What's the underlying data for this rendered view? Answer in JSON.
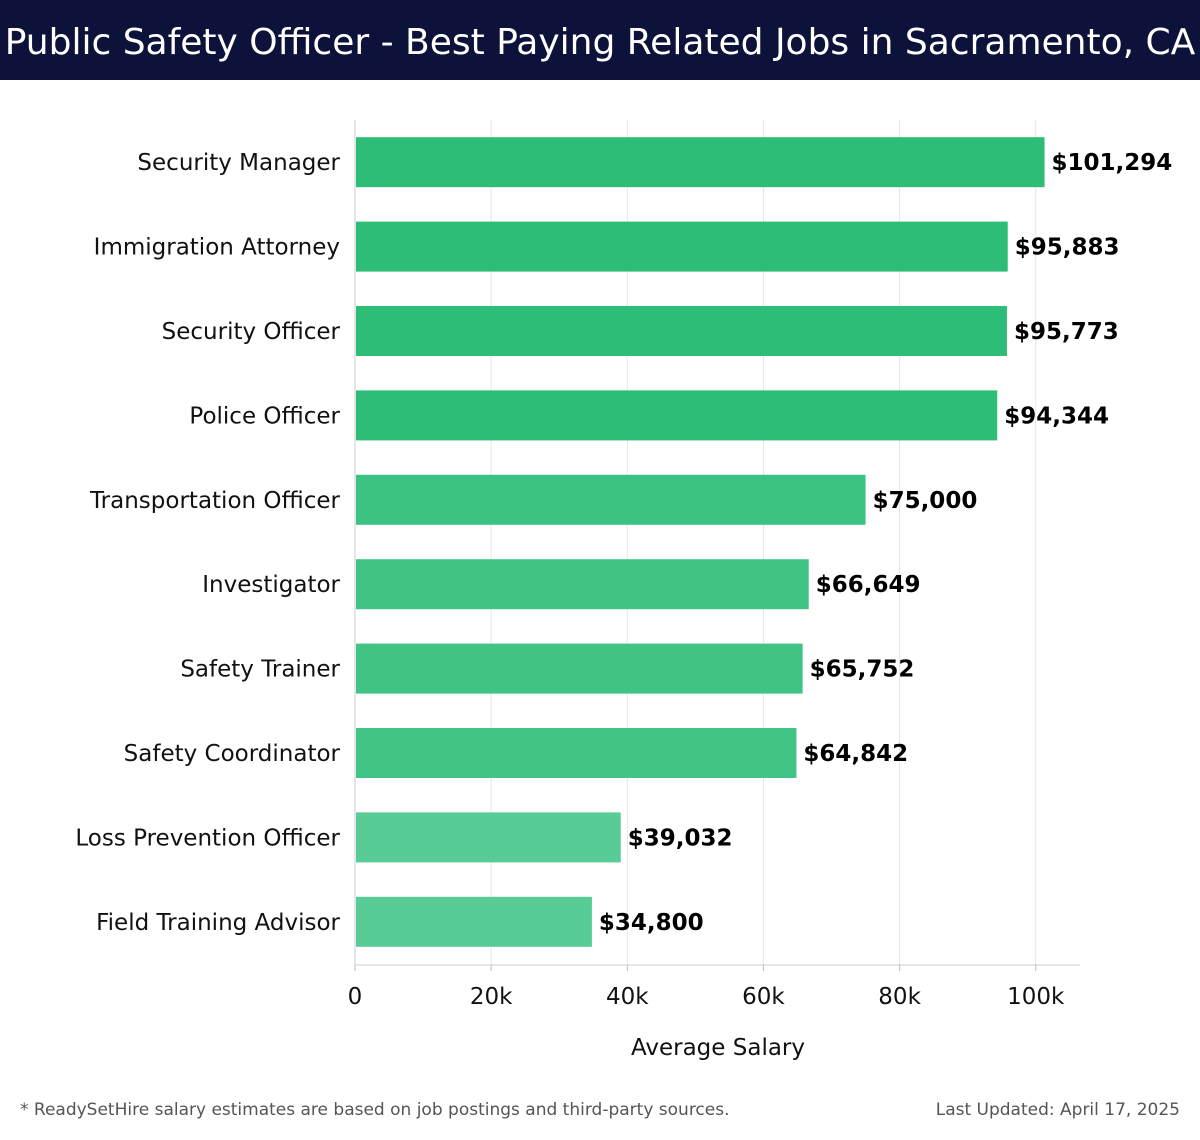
{
  "header": {
    "title": "Public Safety Officer - Best Paying Related Jobs in Sacramento, CA"
  },
  "chart_data": {
    "type": "bar",
    "orientation": "horizontal",
    "title": "Public Safety Officer - Best Paying Related Jobs in Sacramento, CA",
    "xlabel": "Average Salary",
    "ylabel": "",
    "xlim": [
      0,
      106500
    ],
    "xticks": [
      0,
      20000,
      40000,
      60000,
      80000,
      100000
    ],
    "xtick_labels": [
      "0",
      "20k",
      "40k",
      "60k",
      "80k",
      "100k"
    ],
    "grid": true,
    "legend": "none",
    "categories": [
      "Security Manager",
      "Immigration Attorney",
      "Security Officer",
      "Police Officer",
      "Transportation Officer",
      "Investigator",
      "Safety Trainer",
      "Safety Coordinator",
      "Loss Prevention Officer",
      "Field Training Advisor"
    ],
    "values": [
      101294,
      95883,
      95773,
      94344,
      75000,
      66649,
      65752,
      64842,
      39032,
      34800
    ],
    "value_labels": [
      "$101,294",
      "$95,883",
      "$95,773",
      "$94,344",
      "$75,000",
      "$66,649",
      "$65,752",
      "$64,842",
      "$39,032",
      "$34,800"
    ],
    "bar_colors": [
      "#2ebd77",
      "#2ebd77",
      "#2ebd77",
      "#2ebd77",
      "#3cc282",
      "#3fc483",
      "#40c485",
      "#41c486",
      "#58cc96",
      "#58cc96"
    ]
  },
  "footer": {
    "note": "* ReadySetHire salary estimates are based on job postings and third-party sources.",
    "updated": "Last Updated: April 17, 2025"
  }
}
